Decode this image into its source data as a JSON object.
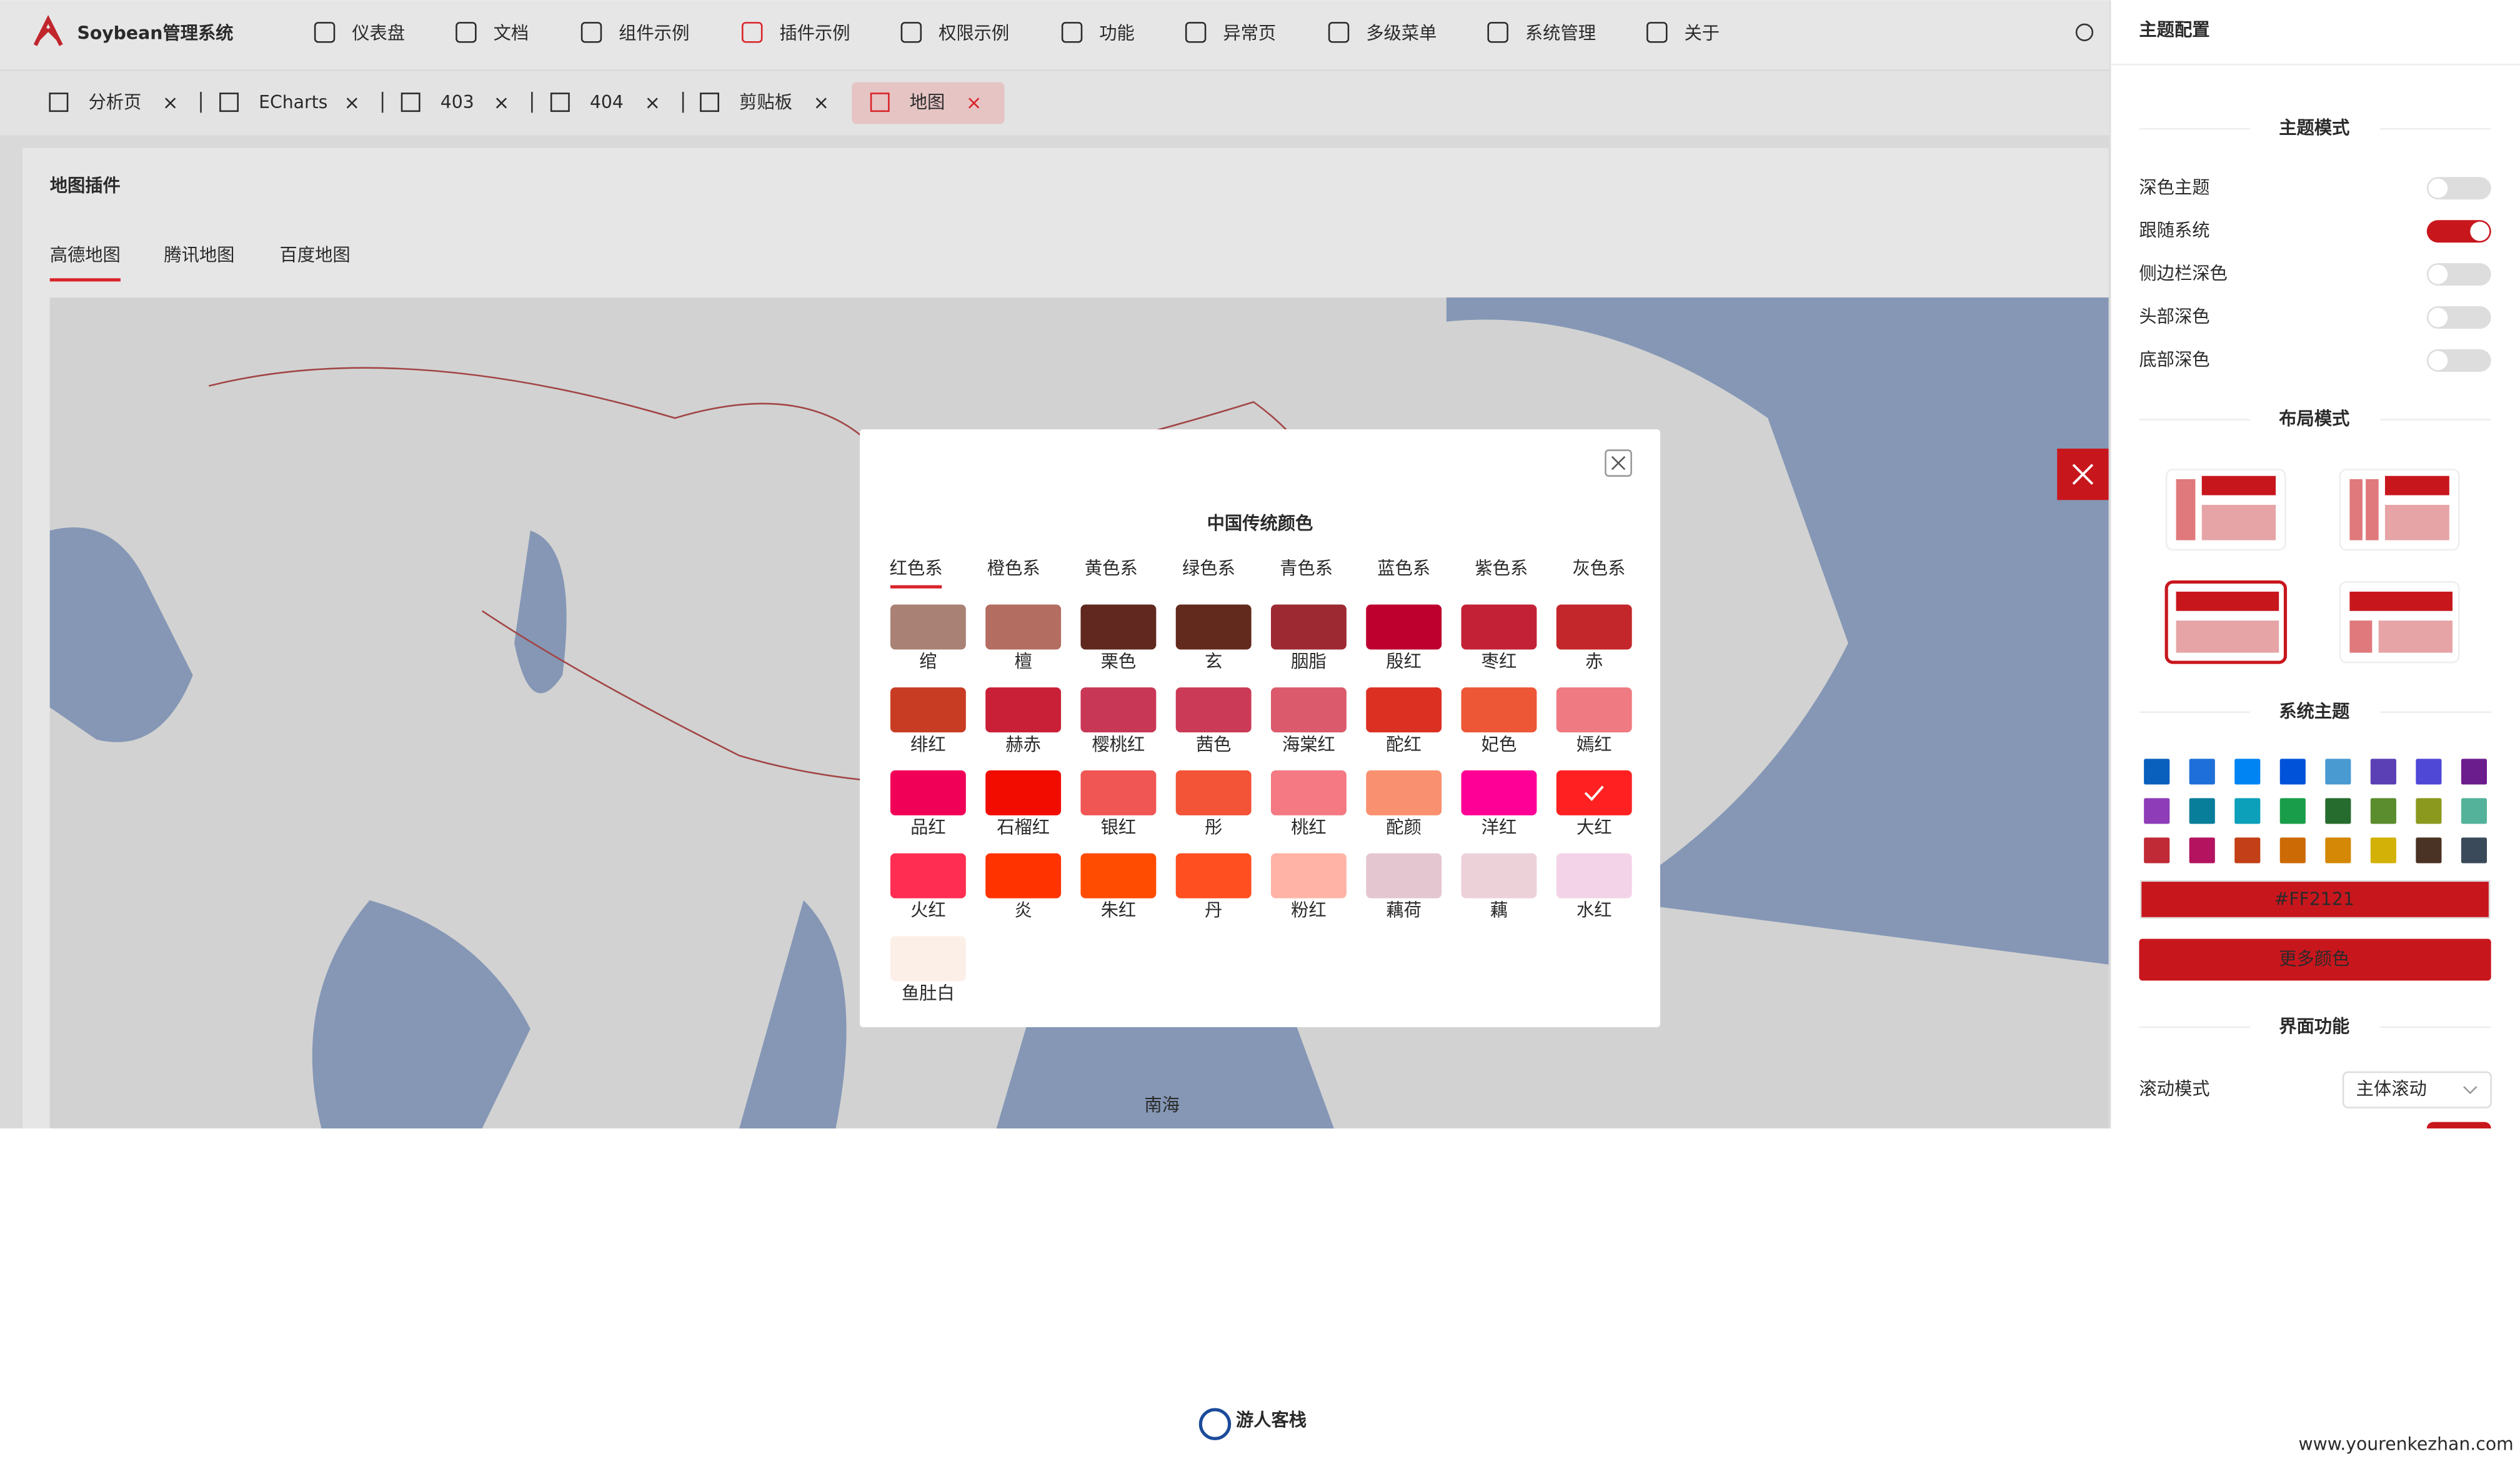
{
  "header": {
    "logo": "Soybean管理系统",
    "menu": [
      "仪表盘",
      "文档",
      "组件示例",
      "插件示例",
      "权限示例",
      "功能",
      "异常页",
      "多级菜单",
      "系统管理",
      "关于"
    ],
    "active_menu": 3
  },
  "tabs": {
    "items": [
      "分析页",
      "ECharts",
      "403",
      "404",
      "剪贴板",
      "地图"
    ],
    "active": 5
  },
  "card": {
    "title": "地图插件",
    "map_tabs": [
      "高德地图",
      "腾讯地图",
      "百度地图"
    ],
    "active_map_tab": 0,
    "map_label": "南海"
  },
  "modal": {
    "title": "中国传统颜色",
    "groups": [
      "红色系",
      "橙色系",
      "黄色系",
      "绿色系",
      "青色系",
      "蓝色系",
      "紫色系",
      "灰色系"
    ],
    "active_group": 0,
    "colors": [
      {
        "name": "绾",
        "color": "#a98175"
      },
      {
        "name": "檀",
        "color": "#b36d61"
      },
      {
        "name": "栗色",
        "color": "#60281e"
      },
      {
        "name": "玄",
        "color": "#622a1d"
      },
      {
        "name": "胭脂",
        "color": "#9d2933"
      },
      {
        "name": "殷红",
        "color": "#be002f"
      },
      {
        "name": "枣红",
        "color": "#c32136"
      },
      {
        "name": "赤",
        "color": "#c3272b"
      },
      {
        "name": "绯红",
        "color": "#c83c23"
      },
      {
        "name": "赫赤",
        "color": "#c91f37"
      },
      {
        "name": "樱桃红",
        "color": "#c93756"
      },
      {
        "name": "茜色",
        "color": "#cb3a56"
      },
      {
        "name": "海棠红",
        "color": "#db5a6b"
      },
      {
        "name": "酡红",
        "color": "#dc3023"
      },
      {
        "name": "妃色",
        "color": "#ed5736"
      },
      {
        "name": "嫣红",
        "color": "#ef7a82"
      },
      {
        "name": "品红",
        "color": "#f00056"
      },
      {
        "name": "石榴红",
        "color": "#f20c00"
      },
      {
        "name": "银红",
        "color": "#f05654"
      },
      {
        "name": "彤",
        "color": "#f35336"
      },
      {
        "name": "桃红",
        "color": "#f47983"
      },
      {
        "name": "酡颜",
        "color": "#f9906f"
      },
      {
        "name": "洋红",
        "color": "#ff0097"
      },
      {
        "name": "大红",
        "color": "#ff2121"
      },
      {
        "name": "火红",
        "color": "#ff2d51"
      },
      {
        "name": "炎",
        "color": "#ff3300"
      },
      {
        "name": "朱红",
        "color": "#ff4c00"
      },
      {
        "name": "丹",
        "color": "#ff4e20"
      },
      {
        "name": "粉红",
        "color": "#ffb3a7"
      },
      {
        "name": "藕荷",
        "color": "#e4c6d0"
      },
      {
        "name": "藕",
        "color": "#edd1d8"
      },
      {
        "name": "水红",
        "color": "#f3d3e7"
      },
      {
        "name": "鱼肚白",
        "color": "#fcefe8"
      }
    ],
    "selected": 23
  },
  "drawer": {
    "title": "主题配置",
    "theme_mode": {
      "title": "主题模式",
      "switches": [
        {
          "label": "深色主题",
          "on": false
        },
        {
          "label": "跟随系统",
          "on": true
        },
        {
          "label": "侧边栏深色",
          "on": false
        },
        {
          "label": "头部深色",
          "on": false
        },
        {
          "label": "底部深色",
          "on": false
        }
      ]
    },
    "layout_mode": {
      "title": "布局模式"
    },
    "system_theme": {
      "title": "系统主题",
      "palette": [
        "#0960bd",
        "#1e6fd9",
        "#0084f4",
        "#0052d9",
        "#4a9ad2",
        "#5b3fb5",
        "#4f47d6",
        "#6b1c8d",
        "#8e3cb8",
        "#087e9a",
        "#0ca0ba",
        "#1a9d4a",
        "#276c2f",
        "#5b8c2e",
        "#8b9a1e",
        "#54b29b",
        "#c02a36",
        "#b3135f",
        "#c23f17",
        "#cc6a05",
        "#d48806",
        "#d4b106",
        "#4a3224",
        "#3a4a5a"
      ],
      "input": "#FF2121",
      "button": "更多颜色"
    },
    "ui_features": {
      "title": "界面功能",
      "scroll_label": "滚动模式",
      "scroll_value": "主体滚动"
    }
  },
  "watermark": {
    "brand": "游人客栈",
    "url": "www.yourenkezhan.com"
  }
}
